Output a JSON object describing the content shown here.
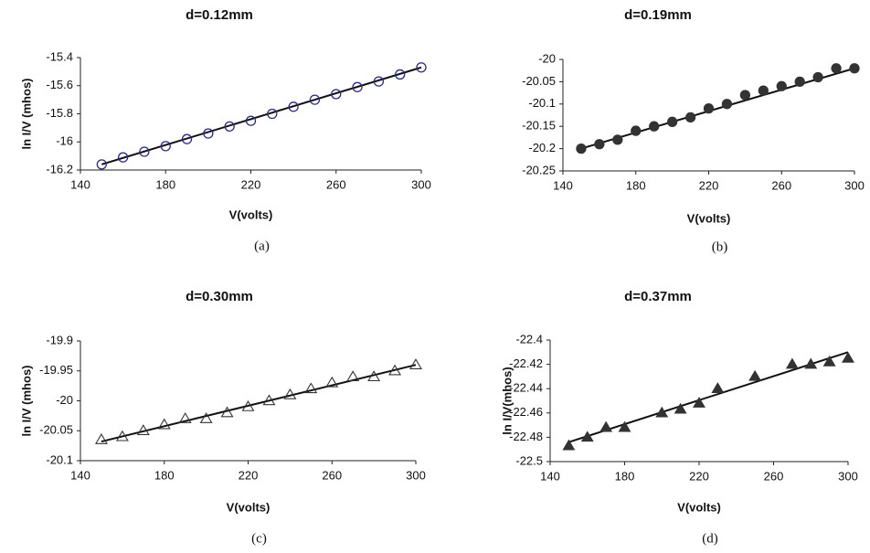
{
  "chart_data": [
    {
      "type": "scatter",
      "title": "d=0.12mm",
      "x_label": "V(volts)",
      "y_label": "ln I/V (mhos)",
      "caption": "(a)",
      "marker": "circle",
      "filled": false,
      "color": "#2a2a8a",
      "x": [
        150,
        160,
        170,
        180,
        190,
        200,
        210,
        220,
        230,
        240,
        250,
        260,
        270,
        280,
        290,
        300
      ],
      "values": [
        -16.16,
        -16.11,
        -16.07,
        -16.03,
        -15.98,
        -15.94,
        -15.89,
        -15.85,
        -15.8,
        -15.75,
        -15.7,
        -15.66,
        -15.61,
        -15.57,
        -15.52,
        -15.47
      ],
      "fit": {
        "x": [
          150,
          300
        ],
        "values": [
          -16.16,
          -15.47
        ]
      },
      "xlim": [
        140,
        300
      ],
      "xticks": [
        140,
        180,
        220,
        260,
        300
      ],
      "ylim": [
        -16.2,
        -15.4
      ],
      "yticks": [
        -16.2,
        -16,
        -15.8,
        -15.6,
        -15.4
      ]
    },
    {
      "type": "scatter",
      "title": "d=0.19mm",
      "x_label": "V(volts)",
      "caption": "(b)",
      "marker": "circle",
      "filled": true,
      "color": "#333333",
      "x": [
        150,
        160,
        170,
        180,
        190,
        200,
        210,
        220,
        230,
        240,
        250,
        260,
        270,
        280,
        290,
        300
      ],
      "values": [
        -20.2,
        -20.19,
        -20.18,
        -20.16,
        -20.15,
        -20.14,
        -20.13,
        -20.11,
        -20.1,
        -20.08,
        -20.07,
        -20.06,
        -20.05,
        -20.04,
        -20.02,
        -20.02
      ],
      "fit": {
        "x": [
          150,
          300
        ],
        "values": [
          -20.2,
          -20.02
        ]
      },
      "xlim": [
        140,
        300
      ],
      "xticks": [
        140,
        180,
        220,
        260,
        300
      ],
      "ylim": [
        -20.25,
        -20
      ],
      "yticks": [
        -20.25,
        -20.2,
        -20.15,
        -20.1,
        -20.05,
        -20
      ]
    },
    {
      "type": "scatter",
      "title": "d=0.30mm",
      "x_label": "V(volts)",
      "y_label": "ln I/V (mhos)",
      "caption": "(c)",
      "marker": "triangle",
      "filled": false,
      "color": "#333333",
      "x": [
        150,
        160,
        170,
        180,
        190,
        200,
        210,
        220,
        230,
        240,
        250,
        260,
        270,
        280,
        290,
        300
      ],
      "values": [
        -20.065,
        -20.06,
        -20.05,
        -20.04,
        -20.03,
        -20.03,
        -20.02,
        -20.01,
        -20,
        -19.99,
        -19.98,
        -19.97,
        -19.96,
        -19.96,
        -19.95,
        -19.94
      ],
      "fit": {
        "x": [
          150,
          300
        ],
        "values": [
          -20.068,
          -19.94
        ]
      },
      "xlim": [
        140,
        300
      ],
      "xticks": [
        140,
        180,
        220,
        260,
        300
      ],
      "ylim": [
        -20.1,
        -19.9
      ],
      "yticks": [
        -20.1,
        -20.05,
        -20,
        -19.95,
        -19.9
      ]
    },
    {
      "type": "scatter",
      "title": "d=0.37mm",
      "x_label": "V(volts)",
      "y_label": "ln I/V(mhos)",
      "caption": "(d)",
      "marker": "triangle",
      "filled": true,
      "color": "#333333",
      "x": [
        150,
        160,
        170,
        180,
        200,
        210,
        220,
        230,
        250,
        270,
        280,
        290,
        300
      ],
      "values": [
        -22.487,
        -22.48,
        -22.472,
        -22.472,
        -22.46,
        -22.457,
        -22.452,
        -22.44,
        -22.43,
        -22.42,
        -22.42,
        -22.418,
        -22.415
      ],
      "fit": {
        "x": [
          150,
          300
        ],
        "values": [
          -22.484,
          -22.41
        ]
      },
      "xlim": [
        140,
        300
      ],
      "xticks": [
        140,
        180,
        220,
        260,
        300
      ],
      "ylim": [
        -22.5,
        -22.4
      ],
      "yticks": [
        -22.5,
        -22.48,
        -22.46,
        -22.44,
        -22.42,
        -22.4
      ]
    }
  ]
}
